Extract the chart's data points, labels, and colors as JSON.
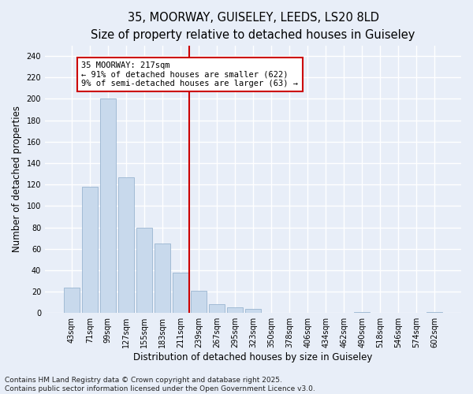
{
  "title1": "35, MOORWAY, GUISELEY, LEEDS, LS20 8LD",
  "title2": "Size of property relative to detached houses in Guiseley",
  "xlabel": "Distribution of detached houses by size in Guiseley",
  "ylabel": "Number of detached properties",
  "bar_color": "#c8d9ec",
  "bar_edge_color": "#9ab5d0",
  "background_color": "#e8eef8",
  "grid_color": "#ffffff",
  "fig_background_color": "#e8eef8",
  "categories": [
    "43sqm",
    "71sqm",
    "99sqm",
    "127sqm",
    "155sqm",
    "183sqm",
    "211sqm",
    "239sqm",
    "267sqm",
    "295sqm",
    "323sqm",
    "350sqm",
    "378sqm",
    "406sqm",
    "434sqm",
    "462sqm",
    "490sqm",
    "518sqm",
    "546sqm",
    "574sqm",
    "602sqm"
  ],
  "values": [
    24,
    118,
    200,
    127,
    80,
    65,
    38,
    21,
    8,
    5,
    4,
    0,
    0,
    0,
    0,
    0,
    1,
    0,
    0,
    0,
    1
  ],
  "vline_x": 6.5,
  "vline_color": "#cc0000",
  "annotation_text": "35 MOORWAY: 217sqm\n← 91% of detached houses are smaller (622)\n9% of semi-detached houses are larger (63) →",
  "annotation_box_color": "#ffffff",
  "annotation_box_edge_color": "#cc0000",
  "ylim": [
    0,
    250
  ],
  "yticks": [
    0,
    20,
    40,
    60,
    80,
    100,
    120,
    140,
    160,
    180,
    200,
    220,
    240
  ],
  "footer_text": "Contains HM Land Registry data © Crown copyright and database right 2025.\nContains public sector information licensed under the Open Government Licence v3.0.",
  "title_fontsize": 10.5,
  "subtitle_fontsize": 9.5,
  "label_fontsize": 8.5,
  "tick_fontsize": 7,
  "footer_fontsize": 6.5,
  "annotation_fontsize": 7.5
}
